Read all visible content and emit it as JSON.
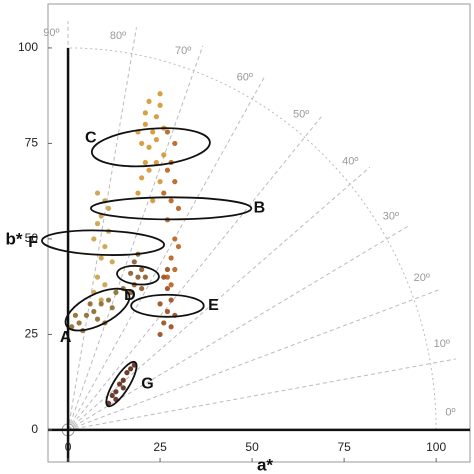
{
  "chart_data": {
    "type": "scatter",
    "xlabel": "a*",
    "ylabel": "b*",
    "xlim": [
      -5.45,
      109.2
    ],
    "ylim": [
      -8.4,
      111.5
    ],
    "xticks": [
      0,
      25,
      50,
      75,
      100
    ],
    "yticks": [
      0,
      25,
      50,
      75,
      100
    ],
    "hue_arc_radius": 100,
    "hue_angles": [
      {
        "value": 0,
        "label": "0º"
      },
      {
        "value": 10,
        "label": "10º"
      },
      {
        "value": 20,
        "label": "20º"
      },
      {
        "value": 30,
        "label": "30º"
      },
      {
        "value": 40,
        "label": "40º"
      },
      {
        "value": 50,
        "label": "50º"
      },
      {
        "value": 60,
        "label": "60º"
      },
      {
        "value": 70,
        "label": "70º"
      },
      {
        "value": 80,
        "label": "80º"
      },
      {
        "value": 90,
        "label": "90º"
      }
    ],
    "groups": [
      {
        "label": "C",
        "color": "#d4952f",
        "label_side": "top-left",
        "x": [
          19,
          20,
          21,
          22,
          23,
          24,
          25,
          22,
          26,
          21,
          24,
          25,
          20,
          23,
          26,
          19,
          22,
          24,
          21,
          25
        ],
        "y": [
          62,
          66,
          70,
          74,
          78,
          82,
          85,
          86,
          79,
          80,
          70,
          65,
          75,
          60,
          72,
          78,
          68,
          76,
          83,
          88
        ],
        "ellipse": {
          "cx": 22.5,
          "cy": 74,
          "rx": 5,
          "ry": 15.5,
          "angle": 95
        }
      },
      {
        "label": "B",
        "color": "#b8611c",
        "label_side": "right",
        "x": [
          27,
          28,
          29,
          27,
          28,
          29,
          28,
          29,
          27,
          30,
          26,
          30,
          28,
          27,
          29
        ],
        "y": [
          40,
          45,
          50,
          55,
          60,
          65,
          70,
          75,
          78,
          58,
          62,
          48,
          38,
          68,
          42
        ],
        "ellipse": {
          "cx": 28,
          "cy": 58,
          "rx": 3,
          "ry": 21,
          "angle": 90
        }
      },
      {
        "label": "F",
        "color": "#c9a048",
        "label_side": "left",
        "x": [
          7,
          8,
          9,
          10,
          11,
          9,
          10,
          8,
          12,
          7,
          11,
          10,
          9,
          8
        ],
        "y": [
          36,
          40,
          45,
          48,
          52,
          56,
          60,
          62,
          44,
          50,
          58,
          38,
          34,
          54
        ],
        "ellipse": {
          "cx": 9.5,
          "cy": 49,
          "rx": 3.3,
          "ry": 16,
          "angle": 88
        }
      },
      {
        "label": "A",
        "color": "#8a6a2c",
        "label_side": "bottom-left",
        "x": [
          1,
          3,
          5,
          7,
          9,
          11,
          13,
          15,
          4,
          8,
          12,
          6,
          10,
          2
        ],
        "y": [
          27,
          28,
          30,
          31,
          33,
          34,
          36,
          37,
          26,
          29,
          32,
          33,
          28,
          30
        ],
        "ellipse": {
          "cx": 8,
          "cy": 31.5,
          "rx": 9.5,
          "ry": 4,
          "angle": 27
        }
      },
      {
        "label": "D",
        "color": "#8b5a26",
        "label_side": "bottom",
        "x": [
          17,
          18,
          19,
          20,
          18,
          19,
          20,
          17,
          21
        ],
        "y": [
          36,
          38,
          40,
          42,
          44,
          46,
          37,
          41,
          40
        ],
        "ellipse": {
          "cx": 19,
          "cy": 40.5,
          "rx": 2.5,
          "ry": 5.5,
          "angle": 85
        }
      },
      {
        "label": "E",
        "color": "#9a4a1c",
        "label_side": "right",
        "x": [
          25,
          26,
          27,
          28,
          27,
          26,
          29,
          25,
          28,
          27
        ],
        "y": [
          25,
          28,
          31,
          34,
          37,
          40,
          30,
          33,
          27,
          42
        ],
        "ellipse": {
          "cx": 27,
          "cy": 32.5,
          "rx": 3,
          "ry": 9.5,
          "angle": 90
        }
      },
      {
        "label": "G",
        "color": "#5a2817",
        "label_side": "right",
        "x": [
          11,
          12,
          13,
          14,
          15,
          16,
          17,
          18,
          13,
          15
        ],
        "y": [
          7,
          9,
          10,
          12,
          13,
          15,
          16,
          17,
          8,
          11
        ],
        "ellipse": {
          "cx": 14.5,
          "cy": 12,
          "rx": 7,
          "ry": 2,
          "angle": 58
        }
      }
    ]
  }
}
